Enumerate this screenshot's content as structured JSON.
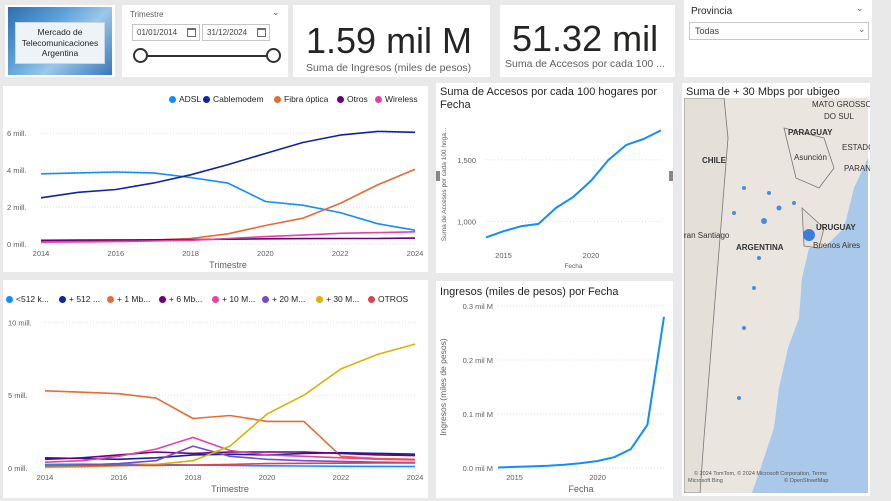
{
  "logo": {
    "line1": "Mercado de",
    "line2": "Telecomunicaciones",
    "line3": "Argentina"
  },
  "date_slicer": {
    "label": "Trimestre",
    "start": "01/01/2014",
    "end": "31/12/2024"
  },
  "card_ingresos": {
    "value": "1.59 mil M",
    "label": "Suma de Ingresos (miles de pesos)"
  },
  "card_accesos": {
    "value": "51.32 mil",
    "label": "Suma de Accesos por cada 100 ..."
  },
  "provincia_slicer": {
    "label": "Provincia",
    "selected": "Todas"
  },
  "colors": {
    "ADSL": "#118dff",
    "Cablemodem": "#12239e",
    "Fibra": "#e66c37",
    "Otros": "#6b007b",
    "Wireless": "#e044a7",
    "s512k": "#118dff",
    "s512": "#12239e",
    "s1mb": "#e66c37",
    "s6mb": "#6b007b",
    "s10m": "#e044a7",
    "s20m": "#744ec2",
    "s30m": "#d9b300",
    "sotros": "#d64550"
  },
  "tech_chart": {
    "legend": [
      "ADSL",
      "Cablemodem",
      "Fibra óptica",
      "Otros",
      "Wireless"
    ],
    "xlabel": "Trimestre",
    "xticks": [
      "2014",
      "2016",
      "2018",
      "2020",
      "2022",
      "2024"
    ],
    "yticks": [
      "0 mill.",
      "2 mill.",
      "4 mill.",
      "6 mill."
    ]
  },
  "speed_chart": {
    "legend": [
      "<512 k...",
      "+ 512 ...",
      "+ 1 Mb...",
      "+ 6 Mb...",
      "+ 10 M...",
      "+ 20 M...",
      "+ 30 M...",
      "OTROS"
    ],
    "xlabel": "Trimestre",
    "xticks": [
      "2014",
      "2016",
      "2018",
      "2020",
      "2022",
      "2024"
    ],
    "yticks": [
      "0 mill.",
      "5 mill.",
      "10 mill."
    ]
  },
  "accesos_chart": {
    "title_line1": "Suma de Accesos por cada 100 hogares por",
    "title_line2": "Fecha",
    "ylabel": "Suma de Accesos por cada 100 hoga...",
    "xlabel": "Fecha",
    "xticks": [
      "2015",
      "2020"
    ],
    "yticks": [
      "1,000",
      "1,500"
    ]
  },
  "ingresos_chart": {
    "title": "Ingresos (miles de pesos) por Fecha",
    "ylabel": "Ingresos (miles de pesos)",
    "xlabel": "Fecha",
    "xticks": [
      "2015",
      "2020"
    ],
    "yticks": [
      "0.0 mil M",
      "0.1 mil M",
      "0.2 mil M",
      "0.3 mil M"
    ]
  },
  "map": {
    "title": "Suma de + 30 Mbps por ubigeo",
    "labels": {
      "matogrosso": "MATO GROSSO",
      "dosul": "DO SUL",
      "paraguay": "PARAGUAY",
      "asuncion": "Asunción",
      "chile": "CHILE",
      "estado": "ESTADO",
      "parana": "PARANÁ",
      "uruguay": "URUGUAY",
      "santiago": "ran Santiago",
      "argentina": "ARGENTINA",
      "buenos": "Buenos Aires"
    },
    "credits1": "© 2024 TomTom, © 2024 Microsoft Corporation, Terms",
    "credits2": "Microsoft Bing",
    "credits3": "© OpenStreetMap"
  },
  "chart_data": [
    {
      "type": "line",
      "title": "",
      "xlabel": "Trimestre",
      "ylabel": "",
      "x": [
        2014,
        2015,
        2016,
        2017,
        2018,
        2019,
        2020,
        2021,
        2022,
        2023,
        2024
      ],
      "ylim": [
        0,
        6500000
      ],
      "series": [
        {
          "name": "ADSL",
          "values": [
            3800000,
            3850000,
            3900000,
            3850000,
            3600000,
            3300000,
            2300000,
            2100000,
            1700000,
            1100000,
            750000
          ]
        },
        {
          "name": "Cablemodem",
          "values": [
            2500000,
            2800000,
            2950000,
            3300000,
            3750000,
            4300000,
            4900000,
            5500000,
            5900000,
            6100000,
            6050000
          ]
        },
        {
          "name": "Fibra óptica",
          "values": [
            150000,
            170000,
            190000,
            210000,
            300000,
            550000,
            1000000,
            1400000,
            2200000,
            3200000,
            4050000
          ]
        },
        {
          "name": "Otros",
          "values": [
            200000,
            210000,
            220000,
            230000,
            240000,
            260000,
            280000,
            290000,
            300000,
            300000,
            320000
          ]
        },
        {
          "name": "Wireless",
          "values": [
            100000,
            110000,
            130000,
            160000,
            200000,
            300000,
            400000,
            480000,
            580000,
            620000,
            660000
          ]
        }
      ]
    },
    {
      "type": "line",
      "title": "",
      "xlabel": "Trimestre",
      "ylabel": "",
      "x": [
        2014,
        2015,
        2016,
        2017,
        2018,
        2019,
        2020,
        2021,
        2022,
        2023,
        2024
      ],
      "ylim": [
        0,
        10500000
      ],
      "series": [
        {
          "name": "<512 k...",
          "values": [
            250000,
            260000,
            250000,
            240000,
            200000,
            180000,
            150000,
            140000,
            120000,
            110000,
            100000
          ]
        },
        {
          "name": "+ 512 ...",
          "values": [
            700000,
            650000,
            600000,
            700000,
            900000,
            950000,
            900000,
            1000000,
            1050000,
            1000000,
            950000
          ]
        },
        {
          "name": "+ 1 Mb...",
          "values": [
            5300000,
            5200000,
            5100000,
            4800000,
            3400000,
            3600000,
            3200000,
            3200000,
            800000,
            650000,
            600000
          ]
        },
        {
          "name": "+ 6 Mb...",
          "values": [
            600000,
            700000,
            900000,
            1100000,
            1000000,
            1100000,
            1100000,
            1100000,
            1000000,
            900000,
            850000
          ]
        },
        {
          "name": "+ 10 M...",
          "values": [
            400000,
            500000,
            800000,
            1300000,
            2100000,
            1200000,
            900000,
            800000,
            700000,
            600000,
            550000
          ]
        },
        {
          "name": "+ 20 M...",
          "values": [
            100000,
            200000,
            300000,
            500000,
            1500000,
            800000,
            600000,
            500000,
            450000,
            400000,
            380000
          ]
        },
        {
          "name": "+ 30 M...",
          "values": [
            50000,
            80000,
            150000,
            250000,
            500000,
            1500000,
            3700000,
            5000000,
            6800000,
            7800000,
            8500000
          ]
        },
        {
          "name": "OTROS",
          "values": [
            150000,
            160000,
            170000,
            180000,
            200000,
            250000,
            300000,
            320000,
            330000,
            340000,
            350000
          ]
        }
      ]
    },
    {
      "type": "line",
      "title": "Suma de Accesos por cada 100 hogares por Fecha",
      "xlabel": "Fecha",
      "ylabel": "Suma de Accesos por cada 100 hoga...",
      "x": [
        2014,
        2015,
        2016,
        2017,
        2018,
        2019,
        2020,
        2021,
        2022,
        2023,
        2024
      ],
      "ylim": [
        800,
        1800
      ],
      "series": [
        {
          "name": "",
          "values": [
            870,
            920,
            960,
            980,
            1110,
            1200,
            1330,
            1500,
            1620,
            1670,
            1740
          ]
        }
      ]
    },
    {
      "type": "line",
      "title": "Ingresos (miles de pesos) por Fecha",
      "xlabel": "Fecha",
      "ylabel": "Ingresos (miles de pesos)",
      "x": [
        2014,
        2015,
        2016,
        2017,
        2018,
        2019,
        2020,
        2021,
        2022,
        2023,
        2024
      ],
      "ylim": [
        0,
        0.3
      ],
      "series": [
        {
          "name": "",
          "values": [
            0.001,
            0.002,
            0.003,
            0.004,
            0.006,
            0.009,
            0.013,
            0.02,
            0.035,
            0.08,
            0.28
          ]
        }
      ]
    }
  ]
}
